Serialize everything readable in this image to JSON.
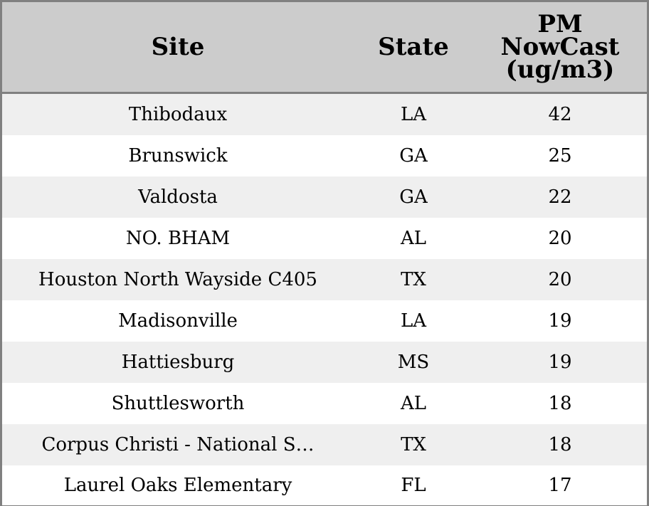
{
  "chart_data": {
    "type": "table",
    "columns": [
      "Site",
      "State",
      "PM\nNowCast\n(ug/m3)"
    ],
    "rows": [
      {
        "site": "Thibodaux",
        "state": "LA",
        "pm": "42"
      },
      {
        "site": "Brunswick",
        "state": "GA",
        "pm": "25"
      },
      {
        "site": "Valdosta",
        "state": "GA",
        "pm": "22"
      },
      {
        "site": "NO. BHAM",
        "state": "AL",
        "pm": "20"
      },
      {
        "site": "Houston North Wayside C405",
        "state": "TX",
        "pm": "20"
      },
      {
        "site": "Madisonville",
        "state": "LA",
        "pm": "19"
      },
      {
        "site": "Hattiesburg",
        "state": "MS",
        "pm": "19"
      },
      {
        "site": "Shuttlesworth",
        "state": "AL",
        "pm": "18"
      },
      {
        "site": "Corpus Christi - National S…",
        "state": "TX",
        "pm": "18"
      },
      {
        "site": "Laurel Oaks Elementary",
        "state": "FL",
        "pm": "17"
      }
    ],
    "colors": {
      "header_bg": "#cccccc",
      "row_alt_bg": "#efefef",
      "border": "#808080"
    }
  }
}
